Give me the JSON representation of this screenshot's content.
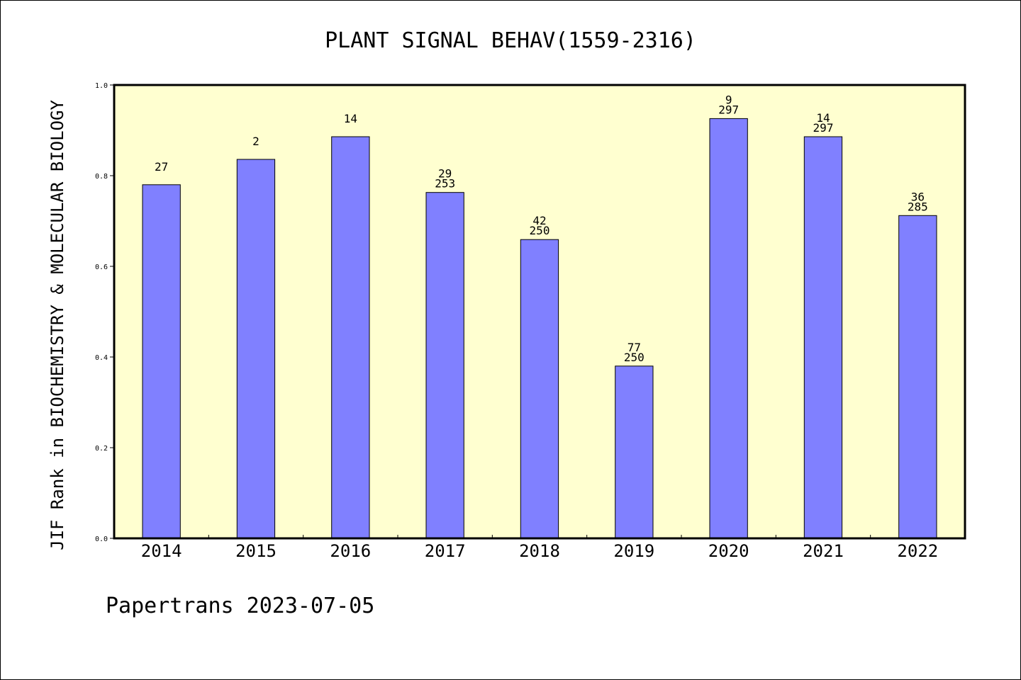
{
  "chart_data": {
    "type": "bar",
    "title": "PLANT SIGNAL BEHAV(1559-2316)",
    "ylabel": "JIF Rank in BIOCHEMISTRY & MOLECULAR BIOLOGY",
    "xlabel": "",
    "categories": [
      "2014",
      "2015",
      "2016",
      "2017",
      "2018",
      "2019",
      "2020",
      "2021",
      "2022"
    ],
    "values": [
      0.78,
      0.836,
      0.886,
      0.763,
      0.659,
      0.38,
      0.926,
      0.886,
      0.712
    ],
    "labels_top": [
      "27",
      "2",
      "14",
      "29",
      "42",
      "77",
      "9",
      "14",
      "36"
    ],
    "labels_bottom": [
      "",
      "",
      "",
      "253",
      "250",
      "250",
      "297",
      "297",
      "285"
    ],
    "ylim": [
      0,
      1.0
    ],
    "yticks": [
      "0.0",
      "0.2",
      "0.4",
      "0.6",
      "0.8",
      "1.0"
    ],
    "grid": false,
    "bar_color": "#8080ff",
    "plot_background": "#ffffd0"
  },
  "footer": "Papertrans 2023-07-05"
}
